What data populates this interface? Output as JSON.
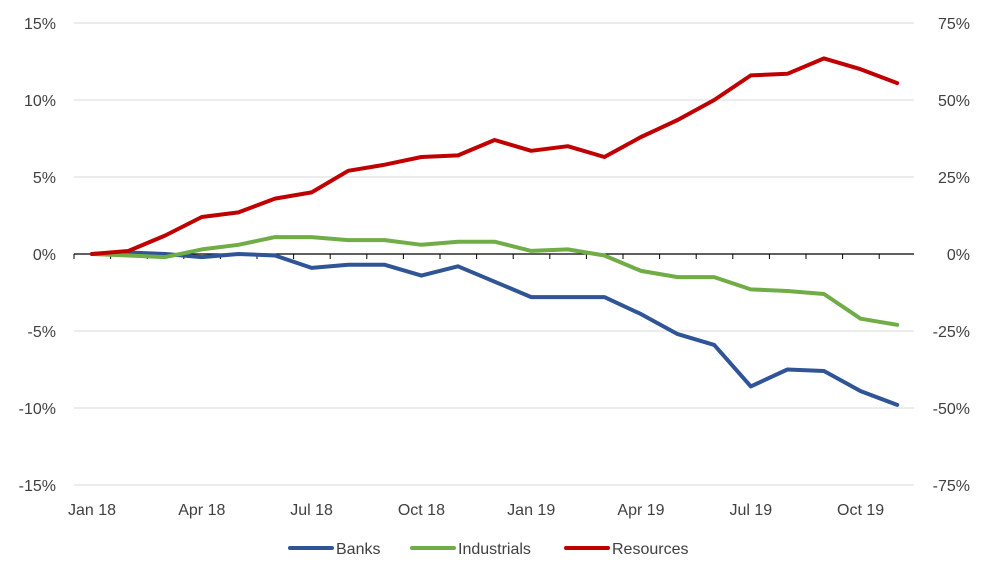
{
  "chart_data": {
    "type": "line",
    "x": [
      "Jan 18",
      "Feb 18",
      "Mar 18",
      "Apr 18",
      "May 18",
      "Jun 18",
      "Jul 18",
      "Aug 18",
      "Sep 18",
      "Oct 18",
      "Nov 18",
      "Dec 18",
      "Jan 19",
      "Feb 19",
      "Mar 19",
      "Apr 19",
      "May 19",
      "Jun 19",
      "Jul 19",
      "Aug 19",
      "Sep 19",
      "Oct 19",
      "Nov 19"
    ],
    "x_tick_labels": [
      "Jan 18",
      "Apr 18",
      "Jul 18",
      "Oct 18",
      "Jan 19",
      "Apr 19",
      "Jul 19",
      "Oct 19"
    ],
    "y_left_ticks": [
      "15%",
      "10%",
      "5%",
      "0%",
      "-5%",
      "-10%",
      "-15%"
    ],
    "y_right_ticks": [
      "75%",
      "50%",
      "25%",
      "0%",
      "-25%",
      "-50%",
      "-75%"
    ],
    "ylim_left": [
      -15,
      15
    ],
    "ylim_right": [
      -75,
      75
    ],
    "grid": true,
    "legend_position": "bottom",
    "series": [
      {
        "name": "Banks",
        "axis": "left",
        "color": "#2F5597",
        "values": [
          0,
          0.1,
          0.0,
          -0.2,
          0.0,
          -0.1,
          -0.9,
          -0.7,
          -0.7,
          -1.4,
          -0.8,
          -1.8,
          -2.8,
          -2.8,
          -2.8,
          -3.9,
          -5.2,
          -5.9,
          -8.6,
          -7.5,
          -7.6,
          -8.9,
          -9.8
        ]
      },
      {
        "name": "Industrials",
        "axis": "left",
        "color": "#70AD47",
        "values": [
          0,
          -0.1,
          -0.2,
          0.3,
          0.6,
          1.1,
          1.1,
          0.9,
          0.9,
          0.6,
          0.8,
          0.8,
          0.2,
          0.3,
          -0.1,
          -1.1,
          -1.5,
          -1.5,
          -2.3,
          -2.4,
          -2.6,
          -4.2,
          -4.6
        ]
      },
      {
        "name": "Resources",
        "axis": "right",
        "color": "#C00000",
        "values": [
          0,
          1,
          6,
          12,
          13.5,
          18,
          20,
          27,
          29,
          31.5,
          32,
          37,
          33.5,
          35,
          31.5,
          38,
          43.5,
          50,
          58,
          58.5,
          63.5,
          60,
          55.5
        ]
      }
    ]
  }
}
